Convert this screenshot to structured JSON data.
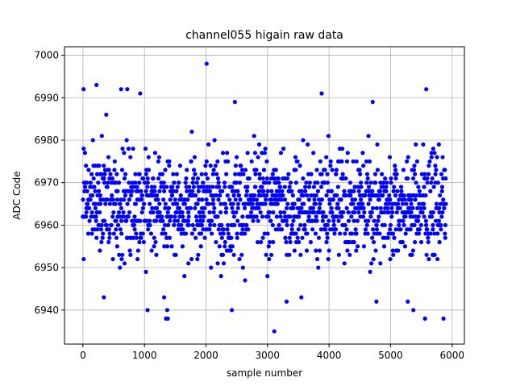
{
  "chart_data": {
    "type": "scatter",
    "title": "channel055 higain raw data",
    "xlabel": "sample number",
    "ylabel": "ADC Code",
    "xlim": [
      -300,
      6200
    ],
    "ylim": [
      6932,
      7002
    ],
    "xticks": [
      0,
      1000,
      2000,
      3000,
      4000,
      5000,
      6000
    ],
    "yticks": [
      6940,
      6950,
      6960,
      6970,
      6980,
      6990,
      7000
    ],
    "grid": true,
    "legend": "none",
    "colors": {
      "marker": "#0000ff",
      "axes": "#000000",
      "grid": "#b0b0b0"
    },
    "series": [
      {
        "num_samples": 6000,
        "x_range": [
          0,
          5900
        ],
        "y_min_observed": 6935,
        "y_max_observed": 6998,
        "typical_band": [
          6955,
          6975
        ],
        "outliers": [
          {
            "x": 10,
            "y": 6992
          },
          {
            "x": 220,
            "y": 6993
          },
          {
            "x": 620,
            "y": 6992
          },
          {
            "x": 720,
            "y": 6992
          },
          {
            "x": 930,
            "y": 6991
          },
          {
            "x": 2010,
            "y": 6998
          },
          {
            "x": 2470,
            "y": 6989
          },
          {
            "x": 3880,
            "y": 6991
          },
          {
            "x": 4710,
            "y": 6989
          },
          {
            "x": 5580,
            "y": 6992
          },
          {
            "x": 1050,
            "y": 6940
          },
          {
            "x": 1350,
            "y": 6938
          },
          {
            "x": 1380,
            "y": 6938
          },
          {
            "x": 1370,
            "y": 6940
          },
          {
            "x": 2420,
            "y": 6940
          },
          {
            "x": 3110,
            "y": 6935
          },
          {
            "x": 5370,
            "y": 6940
          },
          {
            "x": 5560,
            "y": 6938
          },
          {
            "x": 5860,
            "y": 6938
          },
          {
            "x": 340,
            "y": 6943
          },
          {
            "x": 3310,
            "y": 6942
          },
          {
            "x": 3550,
            "y": 6943
          },
          {
            "x": 4770,
            "y": 6942
          },
          {
            "x": 1320,
            "y": 6943
          },
          {
            "x": 5280,
            "y": 6942
          }
        ]
      }
    ]
  }
}
